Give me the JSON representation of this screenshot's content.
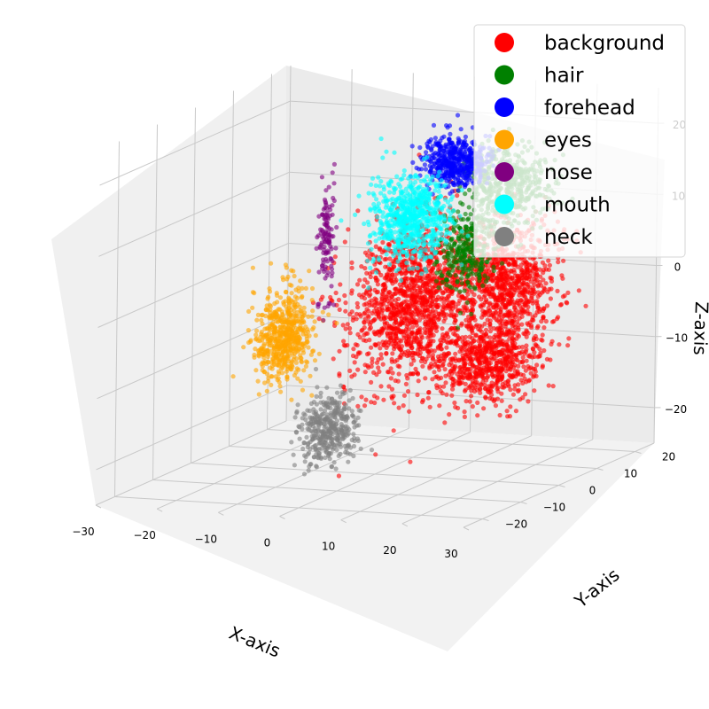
{
  "chart_data": {
    "type": "scatter",
    "projection": "3d",
    "grid": true,
    "legend_placement": "top-right",
    "xlabel": "X-axis",
    "ylabel": "Y-axis",
    "zlabel": "Z-axis",
    "xlim": [
      -30,
      30
    ],
    "ylim": [
      -25,
      25
    ],
    "zlim": [
      -25,
      25
    ],
    "xticks": [
      "−30",
      "−20",
      "−10",
      "0",
      "10",
      "20",
      "30"
    ],
    "yticks": [
      "−20",
      "−10",
      "0",
      "10",
      "20"
    ],
    "zticks": [
      "−20",
      "−10",
      "0",
      "10",
      "20"
    ],
    "series": [
      {
        "name": "background",
        "color": "#ff0000",
        "clusters": [
          {
            "x": 3,
            "y": 5,
            "z": -2,
            "spread": [
              7,
              9,
              9
            ],
            "n": 1400
          },
          {
            "x": 15,
            "y": 10,
            "z": 0,
            "spread": [
              6,
              6,
              7
            ],
            "n": 900
          },
          {
            "x": 20,
            "y": -2,
            "z": -8,
            "spread": [
              6,
              5,
              4
            ],
            "n": 600
          }
        ]
      },
      {
        "name": "hair",
        "color": "#008000",
        "clusters": [
          {
            "x": 10,
            "y": 18,
            "z": 12,
            "spread": [
              5,
              4,
              5
            ],
            "n": 500
          },
          {
            "x": 7,
            "y": 12,
            "z": 4,
            "spread": [
              3,
              3,
              5
            ],
            "n": 300
          }
        ]
      },
      {
        "name": "forehead",
        "color": "#0000ff",
        "clusters": [
          {
            "x": 2,
            "y": 17,
            "z": 15,
            "spread": [
              4,
              3,
              3
            ],
            "n": 500
          }
        ]
      },
      {
        "name": "eyes",
        "color": "#ffa500",
        "clusters": [
          {
            "x": -12,
            "y": -5,
            "z": -5,
            "spread": [
              3,
              4,
              5
            ],
            "n": 600
          }
        ]
      },
      {
        "name": "nose",
        "color": "#800080",
        "clusters": [
          {
            "x": -12,
            "y": 6,
            "z": 6,
            "spread": [
              1,
              1,
              7
            ],
            "n": 120
          }
        ]
      },
      {
        "name": "mouth",
        "color": "#00ffff",
        "clusters": [
          {
            "x": -2,
            "y": 12,
            "z": 8,
            "spread": [
              5,
              3,
              5
            ],
            "n": 700
          }
        ]
      },
      {
        "name": "neck",
        "color": "#808080",
        "clusters": [
          {
            "x": -5,
            "y": -4,
            "z": -18,
            "spread": [
              3,
              4,
              4
            ],
            "n": 400
          }
        ]
      }
    ]
  }
}
